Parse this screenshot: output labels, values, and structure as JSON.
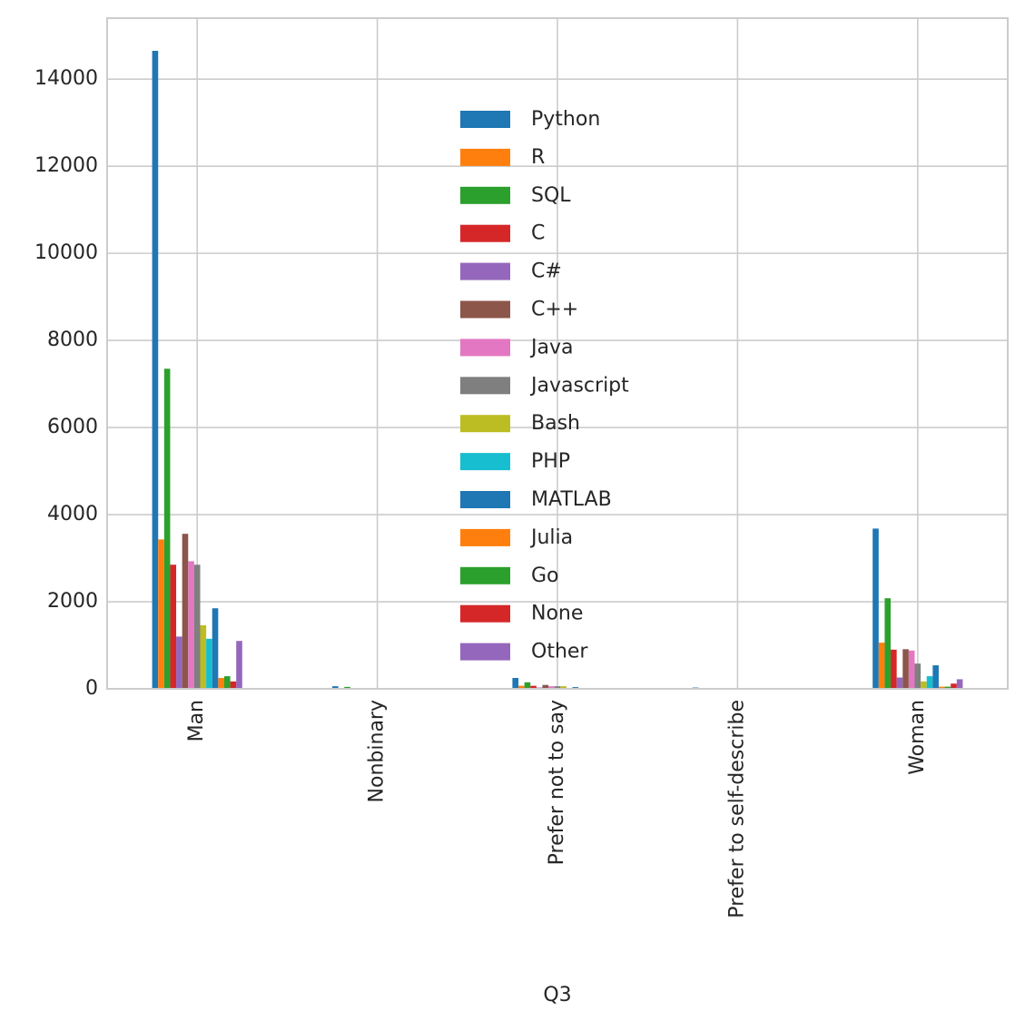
{
  "chart_data": {
    "type": "bar",
    "x_label": "Q3",
    "categories": [
      "Man",
      "Nonbinary",
      "Prefer not to say",
      "Prefer to self-describe",
      "Woman"
    ],
    "series": [
      {
        "name": "Python",
        "color": "#1f77b4",
        "values": [
          14650,
          60,
          250,
          30,
          3680
        ]
      },
      {
        "name": "R",
        "color": "#ff7f0e",
        "values": [
          3430,
          15,
          70,
          10,
          1060
        ]
      },
      {
        "name": "SQL",
        "color": "#2ca02c",
        "values": [
          7350,
          45,
          150,
          15,
          2080
        ]
      },
      {
        "name": "C",
        "color": "#d62728",
        "values": [
          2850,
          15,
          70,
          10,
          900
        ]
      },
      {
        "name": "C#",
        "color": "#9467bd",
        "values": [
          1200,
          10,
          30,
          5,
          260
        ]
      },
      {
        "name": "C++",
        "color": "#8c564b",
        "values": [
          3560,
          15,
          90,
          10,
          910
        ]
      },
      {
        "name": "Java",
        "color": "#e377c2",
        "values": [
          2930,
          15,
          60,
          10,
          880
        ]
      },
      {
        "name": "Javascript",
        "color": "#7f7f7f",
        "values": [
          2850,
          20,
          60,
          10,
          580
        ]
      },
      {
        "name": "Bash",
        "color": "#bcbd22",
        "values": [
          1460,
          15,
          60,
          10,
          170
        ]
      },
      {
        "name": "PHP",
        "color": "#17becf",
        "values": [
          1150,
          10,
          20,
          5,
          290
        ]
      },
      {
        "name": "MATLAB",
        "color": "#1f77b4",
        "values": [
          1850,
          10,
          40,
          5,
          540
        ]
      },
      {
        "name": "Julia",
        "color": "#ff7f0e",
        "values": [
          250,
          5,
          10,
          2,
          50
        ]
      },
      {
        "name": "Go",
        "color": "#2ca02c",
        "values": [
          290,
          5,
          10,
          2,
          50
        ]
      },
      {
        "name": "None",
        "color": "#d62728",
        "values": [
          170,
          10,
          20,
          5,
          120
        ]
      },
      {
        "name": "Other",
        "color": "#9467bd",
        "values": [
          1100,
          10,
          20,
          5,
          220
        ]
      }
    ],
    "ylim": [
      0,
      15400
    ],
    "yticks": [
      0,
      2000,
      4000,
      6000,
      8000,
      10000,
      12000,
      14000
    ],
    "grid": true,
    "legend": "upper center"
  }
}
